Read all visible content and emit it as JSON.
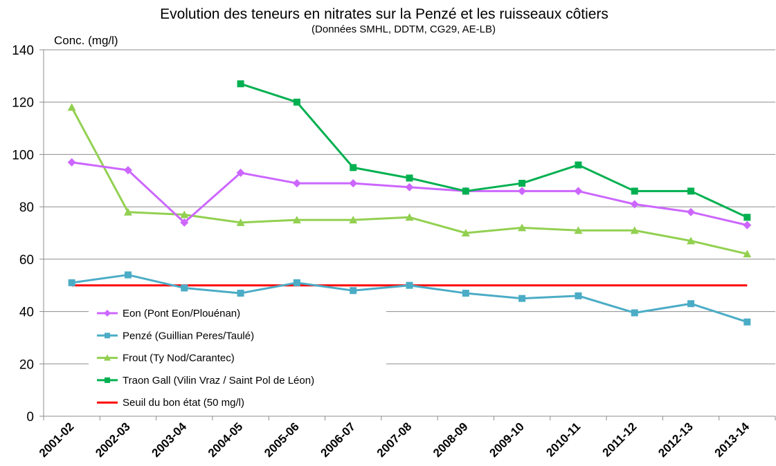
{
  "chart_data": {
    "type": "line",
    "title": "Evolution des teneurs en nitrates sur la Penzé et les ruisseaux côtiers",
    "subtitle": "(Données SMHL, DDTM, CG29, AE-LB)",
    "ylabel": "Conc. (mg/l)",
    "xlabel": "",
    "ylim": [
      0,
      140
    ],
    "yticks": [
      0,
      20,
      40,
      60,
      80,
      100,
      120,
      140
    ],
    "grid": true,
    "legend_position": "left-lower",
    "categories": [
      "2001-02",
      "2002-03",
      "2003-04",
      "2004-05",
      "2005-06",
      "2006-07",
      "2007-08",
      "2008-09",
      "2009-10",
      "2010-11",
      "2011-12",
      "2012-13",
      "2013-14"
    ],
    "series": [
      {
        "name": "Eon (Pont Eon/Plouénan)",
        "color": "#cc66ff",
        "marker": "diamond",
        "values": [
          97,
          94,
          74,
          93,
          89,
          89,
          87.5,
          86,
          86,
          86,
          81,
          78,
          73
        ]
      },
      {
        "name": "Penzé (Guillian Peres/Taulé)",
        "color": "#4bacc6",
        "marker": "square",
        "values": [
          51,
          54,
          49,
          47,
          51,
          48,
          50,
          47,
          45,
          46,
          39.5,
          43,
          36
        ]
      },
      {
        "name": "Frout (Ty Nod/Carantec)",
        "color": "#92d050",
        "marker": "triangle",
        "values": [
          118,
          78,
          77,
          74,
          75,
          75,
          76,
          70,
          72,
          71,
          71,
          67,
          62
        ]
      },
      {
        "name": "Traon Gall (Vilin Vraz / Saint Pol de Léon)",
        "color": "#00b050",
        "marker": "square",
        "values": [
          null,
          null,
          null,
          127,
          120,
          95,
          91,
          86,
          89,
          96,
          86,
          86,
          76
        ]
      },
      {
        "name": "Seuil du bon état (50 mg/l)",
        "color": "#ff0000",
        "marker": "none",
        "values": [
          50,
          50,
          50,
          50,
          50,
          50,
          50,
          50,
          50,
          50,
          50,
          50,
          50
        ]
      }
    ]
  }
}
